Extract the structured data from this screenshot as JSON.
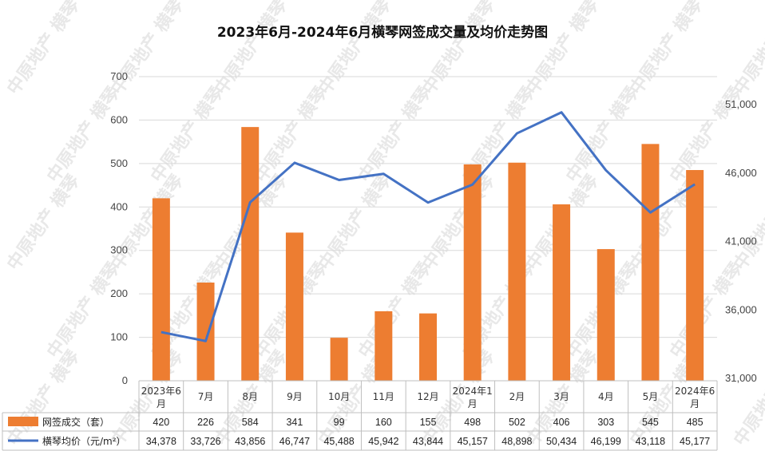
{
  "colors": {
    "bar": "#ED7D31",
    "line": "#4472C4",
    "grid": "#d9d9d9",
    "axis": "#bfbfbf"
  },
  "watermark": "中原地产 横琴",
  "chart_data": {
    "type": "bar",
    "title": "2023年6月-2024年6月横琴网签成交量及均价走势图",
    "categories": [
      "2023年6月",
      "7月",
      "8月",
      "9月",
      "10月",
      "11月",
      "12月",
      "2024年1月",
      "2月",
      "3月",
      "4月",
      "5月",
      "2024年6月"
    ],
    "y_left": {
      "ticks": [
        "0",
        "100",
        "200",
        "300",
        "400",
        "500",
        "600",
        "700"
      ],
      "ylim": [
        0,
        700
      ]
    },
    "y_right": {
      "ticks": [
        "31,000",
        "36,000",
        "41,000",
        "46,000",
        "51,000"
      ],
      "ylim": [
        31000,
        51000
      ]
    },
    "grid": true,
    "legend_position": "bottom-table",
    "series": [
      {
        "name": "网签成交（套）",
        "type": "bar",
        "axis": "left",
        "values": [
          420,
          226,
          584,
          341,
          99,
          160,
          155,
          498,
          502,
          406,
          303,
          545,
          485
        ],
        "labels": [
          "420",
          "226",
          "584",
          "341",
          "99",
          "160",
          "155",
          "498",
          "502",
          "406",
          "303",
          "545",
          "485"
        ]
      },
      {
        "name": "横琴均价（元/m²）",
        "type": "line",
        "axis": "right",
        "values": [
          34378,
          33726,
          43856,
          46747,
          45488,
          45942,
          43844,
          45157,
          48898,
          50434,
          46199,
          43118,
          45177
        ],
        "labels": [
          "34,378",
          "33,726",
          "43,856",
          "46,747",
          "45,488",
          "45,942",
          "43,844",
          "45,157",
          "48,898",
          "50,434",
          "46,199",
          "43,118",
          "45,177"
        ]
      }
    ]
  }
}
